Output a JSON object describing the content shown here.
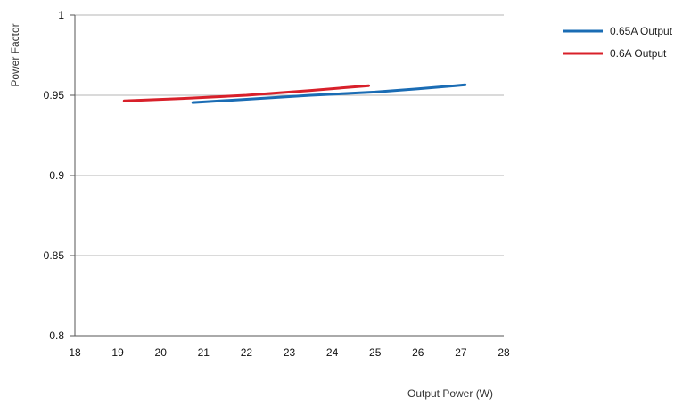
{
  "chart_data": {
    "type": "line",
    "xlabel": "Output Power (W)",
    "ylabel": "Power Factor",
    "xlim": [
      18,
      28
    ],
    "ylim": [
      0.8,
      1
    ],
    "x_ticks": [
      "18",
      "19",
      "20",
      "21",
      "22",
      "23",
      "24",
      "25",
      "26",
      "27",
      "28"
    ],
    "y_ticks": [
      "0.8",
      "0.85",
      "0.9",
      "0.95",
      "1"
    ],
    "grid": "horizontal",
    "legend_position": "top-right",
    "series": [
      {
        "name": "0.65A Output",
        "color": "#1a6cb4",
        "points": [
          [
            20.75,
            0.9455
          ],
          [
            22,
            0.9475
          ],
          [
            23.5,
            0.95
          ],
          [
            25,
            0.952
          ],
          [
            26,
            0.954
          ],
          [
            27.1,
            0.9565
          ]
        ]
      },
      {
        "name": "0.6A Output",
        "color": "#d8202a",
        "points": [
          [
            19.15,
            0.9465
          ],
          [
            20.5,
            0.948
          ],
          [
            22,
            0.95
          ],
          [
            23.5,
            0.953
          ],
          [
            24.85,
            0.956
          ]
        ]
      }
    ]
  }
}
